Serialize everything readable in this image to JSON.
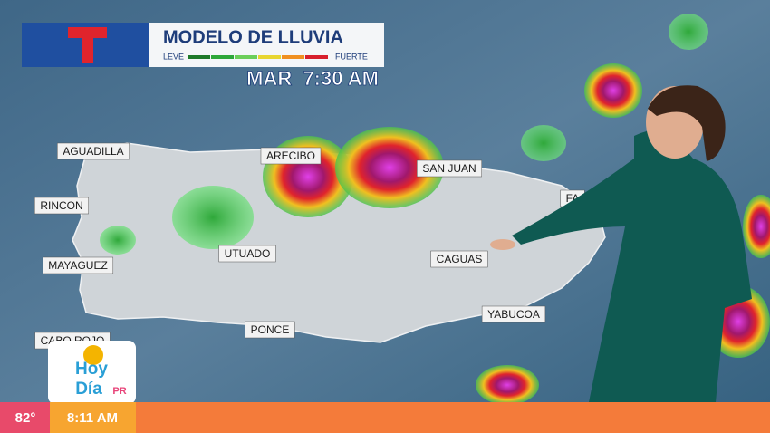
{
  "header": {
    "title": "MODELO DE LLUVIA",
    "scale_low": "LEVE",
    "scale_high": "FUERTE",
    "time": "MAR  7:30 AM"
  },
  "map": {
    "cities": [
      "AGUADILLA",
      "RINCON",
      "MAYAGUEZ",
      "CABO ROJO",
      "ARECIBO",
      "SAN JUAN",
      "UTUADO",
      "CAGUAS",
      "PONCE",
      "YABUCOA",
      "FA"
    ]
  },
  "logo": {
    "line1": "Hoy",
    "line2": "Día",
    "suffix": "PR"
  },
  "ticker": {
    "temperature": "82°",
    "clock": "8:11 AM"
  }
}
